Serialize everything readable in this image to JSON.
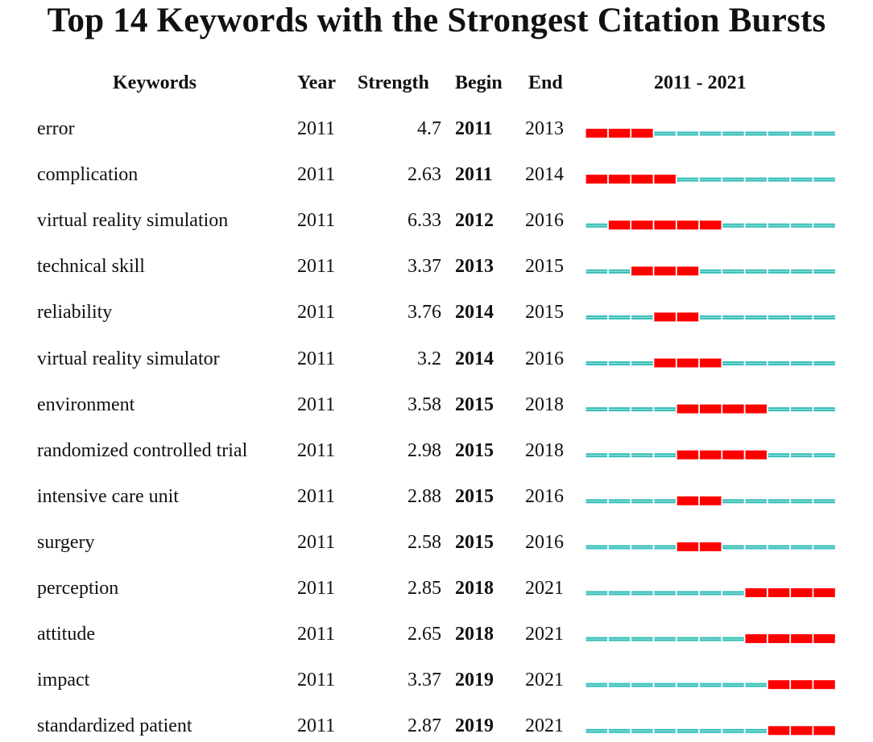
{
  "title": "Top 14 Keywords with the Strongest Citation Bursts",
  "headers": {
    "keywords": "Keywords",
    "year": "Year",
    "strength": "Strength",
    "begin": "Begin",
    "end": "End",
    "range": "2011 - 2021"
  },
  "colors": {
    "burst": "#ff0000",
    "baseline": "#33bbb5",
    "baseline_highlight": "#8fe3de"
  },
  "chart_data": {
    "type": "table",
    "title": "Top 14 Keywords with the Strongest Citation Bursts",
    "timeline": {
      "start": 2011,
      "end": 2021
    },
    "columns": [
      "Keywords",
      "Year",
      "Strength",
      "Begin",
      "End",
      "2011 - 2021"
    ],
    "rows": [
      {
        "keyword": "error",
        "year": "2011",
        "strength": "4.7",
        "begin": "2011",
        "end": "2013"
      },
      {
        "keyword": "complication",
        "year": "2011",
        "strength": "2.63",
        "begin": "2011",
        "end": "2014"
      },
      {
        "keyword": "virtual reality simulation",
        "year": "2011",
        "strength": "6.33",
        "begin": "2012",
        "end": "2016"
      },
      {
        "keyword": "technical skill",
        "year": "2011",
        "strength": "3.37",
        "begin": "2013",
        "end": "2015"
      },
      {
        "keyword": "reliability",
        "year": "2011",
        "strength": "3.76",
        "begin": "2014",
        "end": "2015"
      },
      {
        "keyword": "virtual reality simulator",
        "year": "2011",
        "strength": "3.2",
        "begin": "2014",
        "end": "2016"
      },
      {
        "keyword": "environment",
        "year": "2011",
        "strength": "3.58",
        "begin": "2015",
        "end": "2018"
      },
      {
        "keyword": "randomized controlled trial",
        "year": "2011",
        "strength": "2.98",
        "begin": "2015",
        "end": "2018"
      },
      {
        "keyword": "intensive care unit",
        "year": "2011",
        "strength": "2.88",
        "begin": "2015",
        "end": "2016"
      },
      {
        "keyword": "surgery",
        "year": "2011",
        "strength": "2.58",
        "begin": "2015",
        "end": "2016"
      },
      {
        "keyword": "perception",
        "year": "2011",
        "strength": "2.85",
        "begin": "2018",
        "end": "2021"
      },
      {
        "keyword": "attitude",
        "year": "2011",
        "strength": "2.65",
        "begin": "2018",
        "end": "2021"
      },
      {
        "keyword": "impact",
        "year": "2011",
        "strength": "3.37",
        "begin": "2019",
        "end": "2021"
      },
      {
        "keyword": "standardized patient",
        "year": "2011",
        "strength": "2.87",
        "begin": "2019",
        "end": "2021"
      }
    ]
  }
}
